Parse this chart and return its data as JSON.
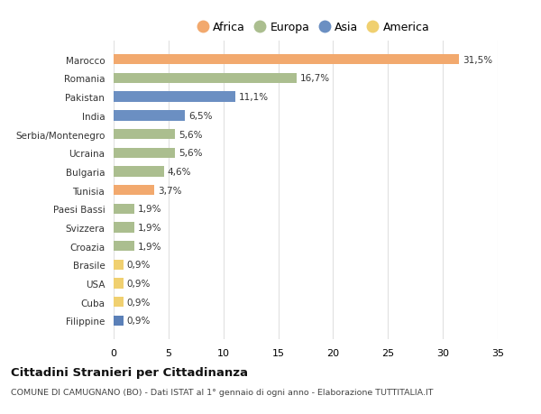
{
  "countries": [
    "Marocco",
    "Romania",
    "Pakistan",
    "India",
    "Serbia/Montenegro",
    "Ucraina",
    "Bulgaria",
    "Tunisia",
    "Paesi Bassi",
    "Svizzera",
    "Croazia",
    "Brasile",
    "USA",
    "Cuba",
    "Filippine"
  ],
  "values": [
    31.5,
    16.7,
    11.1,
    6.5,
    5.6,
    5.6,
    4.6,
    3.7,
    1.9,
    1.9,
    1.9,
    0.9,
    0.9,
    0.9,
    0.9
  ],
  "labels": [
    "31,5%",
    "16,7%",
    "11,1%",
    "6,5%",
    "5,6%",
    "5,6%",
    "4,6%",
    "3,7%",
    "1,9%",
    "1,9%",
    "1,9%",
    "0,9%",
    "0,9%",
    "0,9%",
    "0,9%"
  ],
  "bar_colors": [
    "#F2A96E",
    "#ABBE8F",
    "#6B8FC2",
    "#6B8FC2",
    "#ABBE8F",
    "#ABBE8F",
    "#ABBE8F",
    "#F2A96E",
    "#ABBE8F",
    "#ABBE8F",
    "#ABBE8F",
    "#F0D070",
    "#F0D070",
    "#F0D070",
    "#5B80B8"
  ],
  "legend_entries": [
    "Africa",
    "Europa",
    "Asia",
    "America"
  ],
  "legend_colors": [
    "#F2A96E",
    "#ABBE8F",
    "#6B8FC2",
    "#F0D070"
  ],
  "xlim": [
    0,
    35
  ],
  "xticks": [
    0,
    5,
    10,
    15,
    20,
    25,
    30,
    35
  ],
  "title": "Cittadini Stranieri per Cittadinanza",
  "subtitle": "COMUNE DI CAMUGNANO (BO) - Dati ISTAT al 1° gennaio di ogni anno - Elaborazione TUTTITALIA.IT",
  "background_color": "#ffffff",
  "grid_color": "#e0e0e0"
}
